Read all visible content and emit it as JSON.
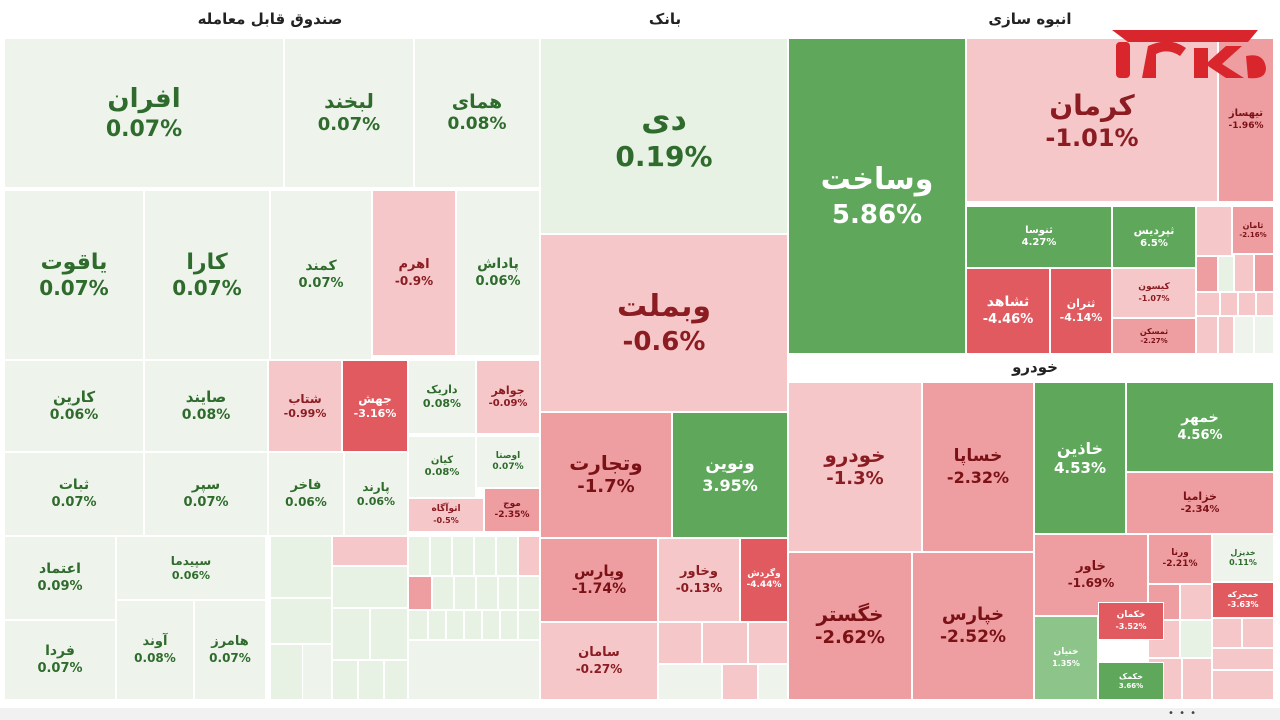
{
  "colors": {
    "strong_green": "#5fa85b",
    "mid_green": "#8dc48a",
    "light_green": "#e7f2e4",
    "neutral": "#eef4ec",
    "light_red": "#f6c7c9",
    "mid_red": "#ee9ea0",
    "strong_red": "#e15a5f",
    "logo_red": "#d9262c"
  },
  "logo": {
    "name": "rokna-logo"
  },
  "chart_data": {
    "type": "treemap",
    "sectors": [
      {
        "name": "صندوق قابل معامله",
        "stocks": [
          {
            "name": "افران",
            "change": "0.07%"
          },
          {
            "name": "لبخند",
            "change": "0.07%"
          },
          {
            "name": "همای",
            "change": "0.08%"
          },
          {
            "name": "یاقوت",
            "change": "0.07%"
          },
          {
            "name": "کارا",
            "change": "0.07%"
          },
          {
            "name": "کمند",
            "change": "0.07%"
          },
          {
            "name": "اهرم",
            "change": "-0.9%"
          },
          {
            "name": "پاداش",
            "change": "0.06%"
          },
          {
            "name": "کارین",
            "change": "0.06%"
          },
          {
            "name": "صایند",
            "change": "0.08%"
          },
          {
            "name": "شتاب",
            "change": "-0.99%"
          },
          {
            "name": "جهش",
            "change": "-3.16%"
          },
          {
            "name": "داریک",
            "change": "0.08%"
          },
          {
            "name": "جواهر",
            "change": "-0.09%"
          },
          {
            "name": "ثبات",
            "change": "0.07%"
          },
          {
            "name": "سپر",
            "change": "0.07%"
          },
          {
            "name": "فاخر",
            "change": "0.06%"
          },
          {
            "name": "پارند",
            "change": "0.06%"
          },
          {
            "name": "کیان",
            "change": "0.08%"
          },
          {
            "name": "اوصتا",
            "change": "0.07%"
          },
          {
            "name": "اتوآگاه",
            "change": "-0.5%"
          },
          {
            "name": "موج",
            "change": "-2.35%"
          },
          {
            "name": "اعتماد",
            "change": "0.09%"
          },
          {
            "name": "سپیدما",
            "change": "0.06%"
          },
          {
            "name": "فردا",
            "change": "0.07%"
          },
          {
            "name": "آوند",
            "change": "0.08%"
          },
          {
            "name": "هامرز",
            "change": "0.07%"
          }
        ]
      },
      {
        "name": "بانک",
        "stocks": [
          {
            "name": "دی",
            "change": "0.19%"
          },
          {
            "name": "وبملت",
            "change": "-0.6%"
          },
          {
            "name": "وتجارت",
            "change": "-1.7%"
          },
          {
            "name": "ونوین",
            "change": "3.95%"
          },
          {
            "name": "وپارس",
            "change": "-1.74%"
          },
          {
            "name": "وخاور",
            "change": "-0.13%"
          },
          {
            "name": "وگردش",
            "change": "-4.44%"
          },
          {
            "name": "سامان",
            "change": "-0.27%"
          }
        ]
      },
      {
        "name": "انبوه سازی",
        "stocks": [
          {
            "name": "وساخت",
            "change": "5.86%"
          },
          {
            "name": "کرمان",
            "change": "-1.01%"
          },
          {
            "name": "ثنوسا",
            "change": "4.27%"
          },
          {
            "name": "ثپردیس",
            "change": "6.5%"
          },
          {
            "name": "ثشاهد",
            "change": "-4.46%"
          },
          {
            "name": "ثتران",
            "change": "-4.14%"
          },
          {
            "name": "کیسون",
            "change": "-1.07%"
          },
          {
            "name": "ثمسکن",
            "change": "-2.27%"
          },
          {
            "name": "تیهساز",
            "change": "-1.96%"
          },
          {
            "name": "ثامان",
            "change": "-2.16%"
          }
        ]
      },
      {
        "name": "خودرو",
        "stocks": [
          {
            "name": "خودرو",
            "change": "-1.3%"
          },
          {
            "name": "خساپا",
            "change": "-2.32%"
          },
          {
            "name": "خاذین",
            "change": "4.53%"
          },
          {
            "name": "خمهر",
            "change": "4.56%"
          },
          {
            "name": "خزامیا",
            "change": "-2.34%"
          },
          {
            "name": "خگستر",
            "change": "-2.62%"
          },
          {
            "name": "خپارس",
            "change": "-2.52%"
          },
          {
            "name": "خاور",
            "change": "-1.69%"
          },
          {
            "name": "ورنا",
            "change": "-2.21%"
          },
          {
            "name": "خدیزل",
            "change": "0.11%"
          },
          {
            "name": "خمحرکه",
            "change": "-3.63%"
          },
          {
            "name": "خکمان",
            "change": "-3.52%"
          },
          {
            "name": "خکمک",
            "change": "3.66%"
          },
          {
            "name": "خنیان",
            "change": "1.35%"
          }
        ]
      }
    ]
  }
}
